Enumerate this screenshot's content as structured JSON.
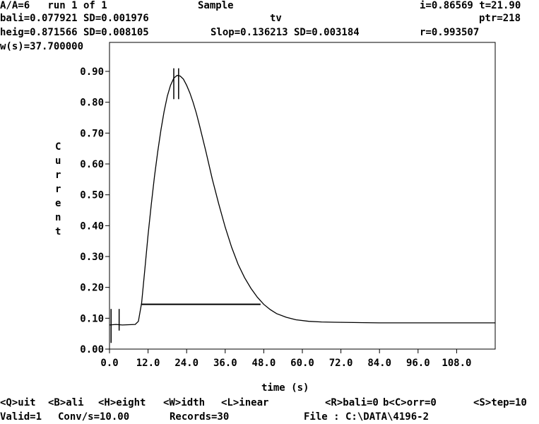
{
  "header": {
    "line1_left": "A/A=6   run 1 of 1",
    "line1_center": "Sample",
    "line1_right": "i=0.86569 t=21.90",
    "line2_left": "bali=0.077921 SD=0.001976",
    "line2_center": "tv",
    "line2_right": "ptr=218",
    "line3_left": "heig=0.871566 SD=0.008105",
    "line3_center": "Slop=0.136213 SD=0.003184",
    "line3_right": "r=0.993507",
    "line4_left": "w(s)=37.700000"
  },
  "footer": {
    "menu_quit": "<Q>uit",
    "menu_bali": "<B>ali",
    "menu_height": "<H>eight",
    "menu_width": "<W>idth",
    "menu_linear": "<L>inear",
    "menu_rbali": "<R>bali=0",
    "menu_corr": "b<C>orr=0",
    "menu_step": "<S>tep=10",
    "status_valid": "Valid=1",
    "status_conv": "Conv/s=10.00",
    "status_records": "Records=30",
    "status_file": "File : C:\\DATA\\4196-2"
  },
  "chart_data": {
    "type": "line",
    "xlabel": "time (s)",
    "ylabel": "Current",
    "xlim": [
      0,
      120
    ],
    "ylim": [
      0,
      0.95
    ],
    "xticks": [
      0,
      12,
      24,
      36,
      48,
      60,
      72,
      84,
      96,
      108
    ],
    "xtick_labels": [
      "0.0",
      "12.0",
      "24.0",
      "36.0",
      "48.0",
      "60.0",
      "72.0",
      "84.0",
      "96.0",
      "108.0"
    ],
    "yticks": [
      0,
      0.1,
      0.2,
      0.3,
      0.4,
      0.5,
      0.6,
      0.7,
      0.8,
      0.9
    ],
    "ytick_labels": [
      "0.00",
      "0.10",
      "0.20",
      "0.30",
      "0.40",
      "0.50",
      "0.60",
      "0.70",
      "0.80",
      "0.90"
    ],
    "series": [
      {
        "x": [
          0,
          2,
          4,
          6,
          8,
          9,
          10,
          11,
          12,
          13,
          14,
          15,
          16,
          17,
          18,
          19,
          20,
          21,
          22,
          23,
          24,
          25,
          26,
          27,
          28,
          30,
          32,
          34,
          36,
          38,
          40,
          42,
          44,
          46,
          48,
          50,
          52,
          55,
          58,
          62,
          66,
          70,
          76,
          84,
          92,
          100,
          108,
          120
        ],
        "y": [
          0.078,
          0.08,
          0.078,
          0.079,
          0.08,
          0.09,
          0.15,
          0.26,
          0.37,
          0.47,
          0.56,
          0.64,
          0.71,
          0.77,
          0.82,
          0.855,
          0.878,
          0.887,
          0.885,
          0.875,
          0.855,
          0.83,
          0.8,
          0.765,
          0.725,
          0.64,
          0.55,
          0.47,
          0.395,
          0.33,
          0.275,
          0.232,
          0.197,
          0.168,
          0.145,
          0.128,
          0.115,
          0.103,
          0.095,
          0.09,
          0.088,
          0.087,
          0.086,
          0.085,
          0.085,
          0.085,
          0.085,
          0.085
        ]
      }
    ],
    "baseline_segment": {
      "x": [
        10,
        47
      ],
      "y": [
        0.145,
        0.145
      ]
    },
    "markers": [
      {
        "x": 0.5,
        "y_low": 0.02,
        "y_high": 0.13
      },
      {
        "x": 3,
        "y_low": 0.06,
        "y_high": 0.13
      },
      {
        "x": 20,
        "y_low": 0.81,
        "y_high": 0.91
      },
      {
        "x": 21.5,
        "y_low": 0.81,
        "y_high": 0.91
      }
    ],
    "grid": false
  }
}
